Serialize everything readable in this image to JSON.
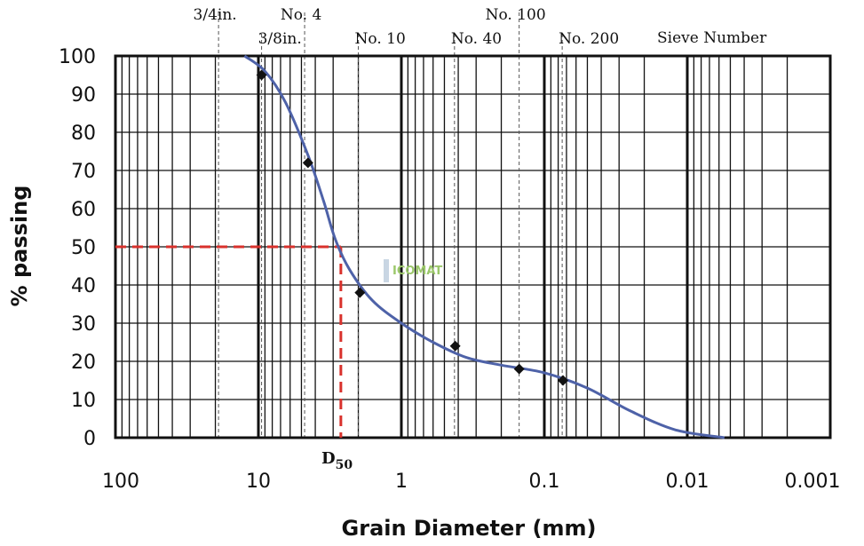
{
  "chart_data": {
    "type": "line",
    "xlabel": "Grain Diameter (mm)",
    "ylabel": "% passing",
    "x_scale": "log",
    "x_reversed": true,
    "xlim": [
      100,
      0.001
    ],
    "ylim": [
      0,
      100
    ],
    "x_ticks": [
      {
        "value": 100,
        "label": "100"
      },
      {
        "value": 10,
        "label": "10"
      },
      {
        "value": 1,
        "label": "1"
      },
      {
        "value": 0.1,
        "label": "0.1"
      },
      {
        "value": 0.01,
        "label": "0.01"
      },
      {
        "value": 0.001,
        "label": "0.001"
      }
    ],
    "y_ticks": [
      0,
      10,
      20,
      30,
      40,
      50,
      60,
      70,
      80,
      90,
      100
    ],
    "grid": true,
    "sieves_title": "Sieve Number",
    "sieves": [
      {
        "label": "3/4in.",
        "size": 19.0,
        "row": 0
      },
      {
        "label": "3/8in.",
        "size": 9.5,
        "row": 1
      },
      {
        "label": "No. 4",
        "size": 4.75,
        "row": 0
      },
      {
        "label": "No. 10",
        "size": 2.0,
        "row": 1
      },
      {
        "label": "No. 40",
        "size": 0.425,
        "row": 1
      },
      {
        "label": "No. 100",
        "size": 0.15,
        "row": 0
      },
      {
        "label": "No. 200",
        "size": 0.075,
        "row": 1
      }
    ],
    "series": [
      {
        "type": "scatter",
        "values": [
          {
            "x": 9.5,
            "y": 95
          },
          {
            "x": 4.5,
            "y": 72
          },
          {
            "x": 1.95,
            "y": 38
          },
          {
            "x": 0.42,
            "y": 24
          },
          {
            "x": 0.15,
            "y": 18
          },
          {
            "x": 0.074,
            "y": 15
          }
        ]
      },
      {
        "type": "line",
        "values": [
          {
            "x": 12.5,
            "y": 100
          },
          {
            "x": 9.0,
            "y": 96
          },
          {
            "x": 6.5,
            "y": 88
          },
          {
            "x": 4.5,
            "y": 74
          },
          {
            "x": 3.5,
            "y": 62
          },
          {
            "x": 2.9,
            "y": 52
          },
          {
            "x": 2.3,
            "y": 44
          },
          {
            "x": 1.6,
            "y": 36
          },
          {
            "x": 1.0,
            "y": 30
          },
          {
            "x": 0.6,
            "y": 25
          },
          {
            "x": 0.35,
            "y": 21
          },
          {
            "x": 0.2,
            "y": 19
          },
          {
            "x": 0.1,
            "y": 17
          },
          {
            "x": 0.05,
            "y": 13
          },
          {
            "x": 0.025,
            "y": 7
          },
          {
            "x": 0.012,
            "y": 2
          },
          {
            "x": 0.0055,
            "y": 0
          }
        ]
      }
    ],
    "d50": {
      "label": "D",
      "subscript": "50",
      "x": 2.65,
      "y": 50
    },
    "watermark": "ICOMAT",
    "colors": {
      "curve": "#4e62a8",
      "d50": "#d9312c",
      "points": "#111111",
      "grid": "#111111"
    }
  }
}
